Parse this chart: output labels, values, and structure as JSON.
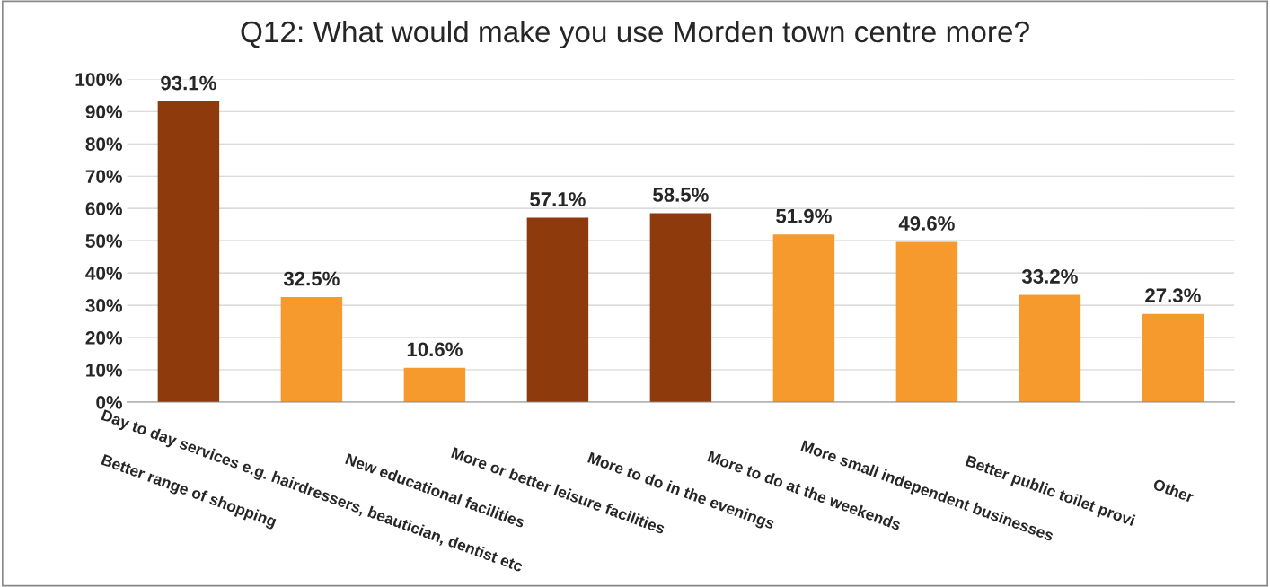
{
  "chart_data": {
    "type": "bar",
    "title": "Q12: What would make you use Morden town centre more?",
    "categories": [
      "Better range of shopping",
      "Day to day services e.g. hairdressers, beautician, dentist etc",
      "New educational facilities",
      "More or better leisure facilities",
      "More to do in the evenings",
      "More to do at the weekends",
      "More small independent businesses",
      "Better public toilet provi",
      "Other"
    ],
    "values": [
      93.1,
      32.5,
      10.6,
      57.1,
      58.5,
      51.9,
      49.6,
      33.2,
      27.3
    ],
    "colors": [
      "#8e3a0c",
      "#f79a2e",
      "#f79a2e",
      "#8e3a0c",
      "#8e3a0c",
      "#f79a2e",
      "#f79a2e",
      "#f79a2e",
      "#f79a2e"
    ],
    "value_labels": [
      "93.1%",
      "32.5%",
      "10.6%",
      "57.1%",
      "58.5%",
      "51.9%",
      "49.6%",
      "33.2%",
      "27.3%"
    ],
    "ylim": [
      0,
      100
    ],
    "yticks": [
      {
        "value": 0,
        "label": "0%"
      },
      {
        "value": 10,
        "label": "10%"
      },
      {
        "value": 20,
        "label": "20%"
      },
      {
        "value": 30,
        "label": "30%"
      },
      {
        "value": 40,
        "label": "40%"
      },
      {
        "value": 50,
        "label": "50%"
      },
      {
        "value": 60,
        "label": "60%"
      },
      {
        "value": 70,
        "label": "70%"
      },
      {
        "value": 80,
        "label": "80%"
      },
      {
        "value": 90,
        "label": "90%"
      },
      {
        "value": 100,
        "label": "100%"
      }
    ],
    "grid": "y",
    "legend": false
  }
}
